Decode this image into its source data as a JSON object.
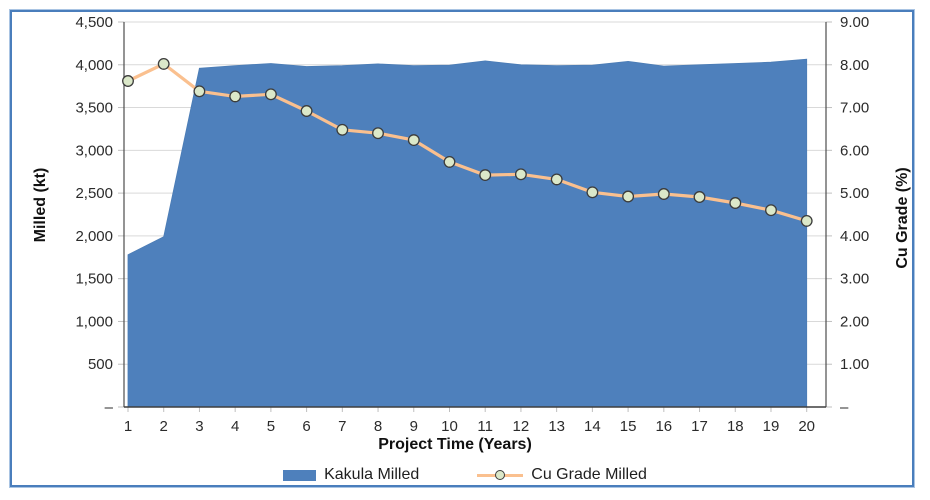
{
  "colors": {
    "frame_border": "#4a7ebc",
    "area_fill": "#4e80bc",
    "line": "#fac08f",
    "marker_fill": "#dbe8c9",
    "marker_stroke": "#3c3c3c",
    "gridline": "#d9d9d9",
    "axis_line": "#4d4d4d",
    "tick": "#bfbfbf"
  },
  "chart_data": {
    "type": "area",
    "subtype": "combo-area-line-two-axes",
    "x": [
      1,
      2,
      3,
      4,
      5,
      6,
      7,
      8,
      9,
      10,
      11,
      12,
      13,
      14,
      15,
      16,
      17,
      18,
      19,
      20
    ],
    "xlabel": "Project Time (Years)",
    "series": [
      {
        "name": "Kakula Milled",
        "type": "area",
        "axis": "left",
        "color": "#4e80bc",
        "values": [
          1780,
          1990,
          3960,
          3990,
          4015,
          3980,
          3990,
          4010,
          3990,
          3995,
          4045,
          4000,
          3990,
          3995,
          4040,
          3985,
          4000,
          4015,
          4030,
          4065
        ]
      },
      {
        "name": "Cu Grade Milled",
        "type": "line",
        "axis": "right",
        "color": "#fac08f",
        "marker": "circle",
        "values": [
          7.62,
          8.02,
          7.38,
          7.26,
          7.31,
          6.92,
          6.48,
          6.4,
          6.24,
          5.73,
          5.42,
          5.44,
          5.32,
          5.02,
          4.92,
          4.98,
          4.91,
          4.77,
          4.6,
          4.35
        ]
      }
    ],
    "left_axis": {
      "title": "Milled (kt)",
      "min": 0,
      "max": 4500,
      "step": 500,
      "tick_labels": [
        "–",
        "500",
        "1,000",
        "1,500",
        "2,000",
        "2,500",
        "3,000",
        "3,500",
        "4,000",
        "4,500"
      ]
    },
    "right_axis": {
      "title": "Cu Grade (%)",
      "min": 0,
      "max": 9,
      "step": 1,
      "tick_labels": [
        "–",
        "1.00",
        "2.00",
        "3.00",
        "4.00",
        "5.00",
        "6.00",
        "7.00",
        "8.00",
        "9.00"
      ]
    },
    "grid": "horizontal",
    "legend_position": "bottom"
  },
  "legend": {
    "items": [
      {
        "label": "Kakula Milled"
      },
      {
        "label": "Cu Grade Milled"
      }
    ]
  }
}
